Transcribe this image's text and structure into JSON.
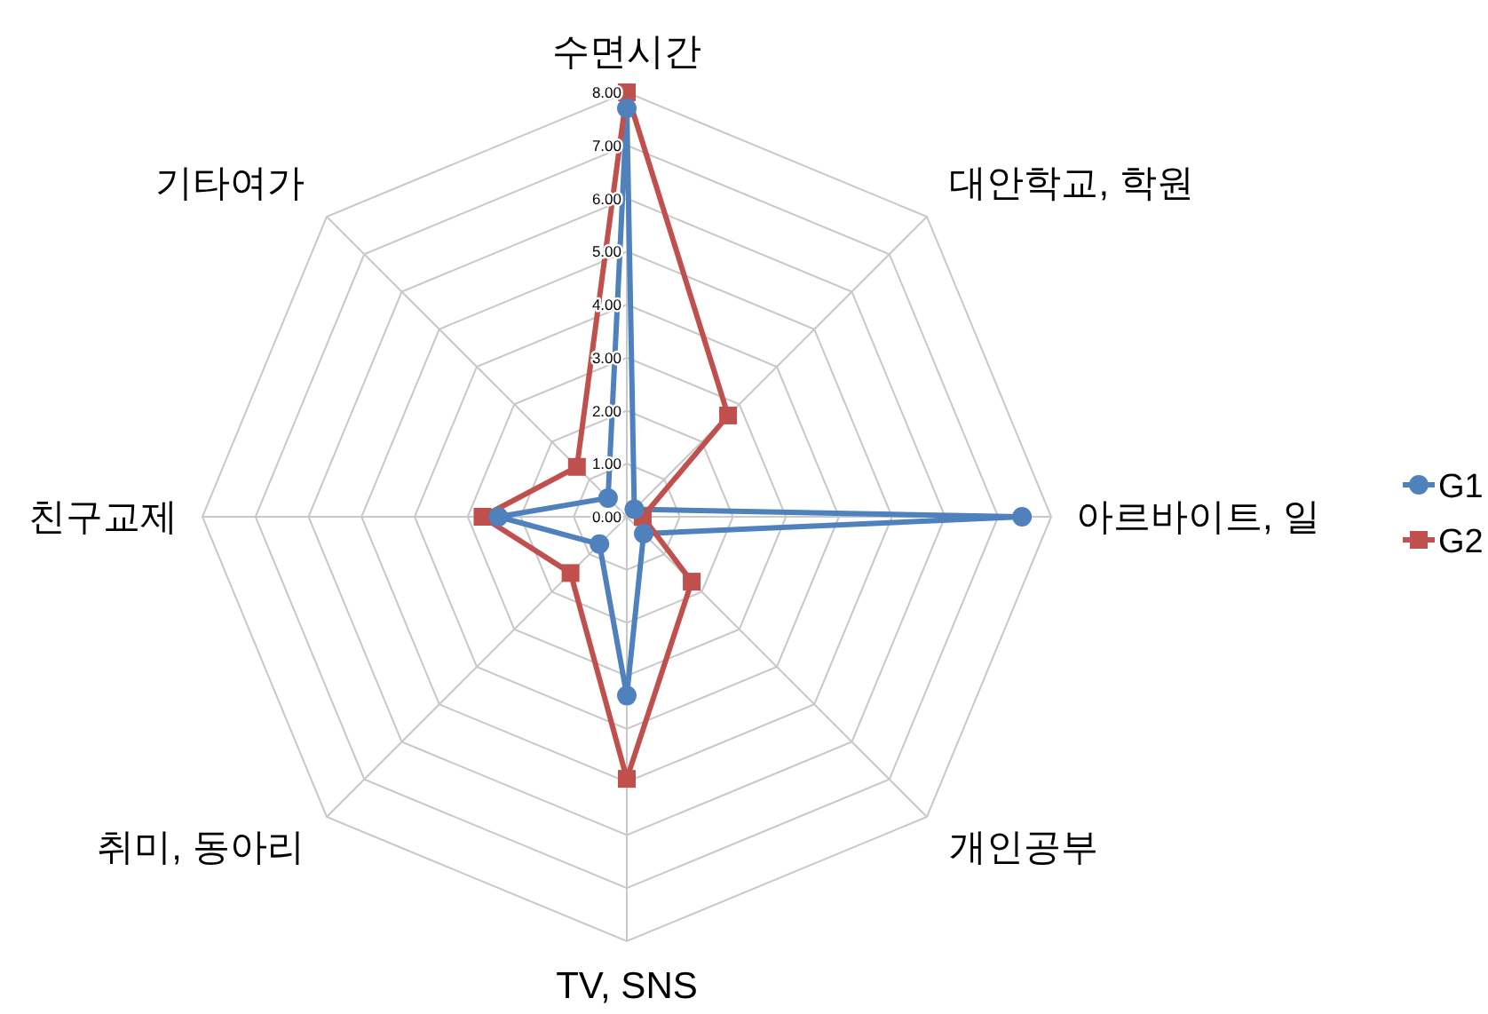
{
  "chart_data": {
    "type": "radar",
    "categories": [
      "수면시간",
      "대안학교, 학원",
      "아르바이트, 일",
      "개인공부",
      "TV, SNS",
      "취미, 동아리",
      "친구교제",
      "기타여가"
    ],
    "series": [
      {
        "name": "G1",
        "color": "#4f81bd",
        "marker": "circle",
        "values": [
          7.7,
          0.2,
          7.45,
          0.45,
          3.37,
          0.73,
          2.42,
          0.5
        ]
      },
      {
        "name": "G2",
        "color": "#c0504d",
        "marker": "square",
        "values": [
          8.0,
          2.7,
          0.3,
          1.73,
          4.94,
          1.5,
          2.72,
          1.33
        ]
      }
    ],
    "ylim": [
      0,
      8
    ],
    "yticks": [
      {
        "value": 0,
        "label": "0.00"
      },
      {
        "value": 1,
        "label": "1.00"
      },
      {
        "value": 2,
        "label": "2.00"
      },
      {
        "value": 3,
        "label": "3.00"
      },
      {
        "value": 4,
        "label": "4.00"
      },
      {
        "value": 5,
        "label": "5.00"
      },
      {
        "value": 6,
        "label": "6.00"
      },
      {
        "value": 7,
        "label": "7.00"
      },
      {
        "value": 8,
        "label": "8.00"
      }
    ],
    "grid": true,
    "legend": "right"
  }
}
